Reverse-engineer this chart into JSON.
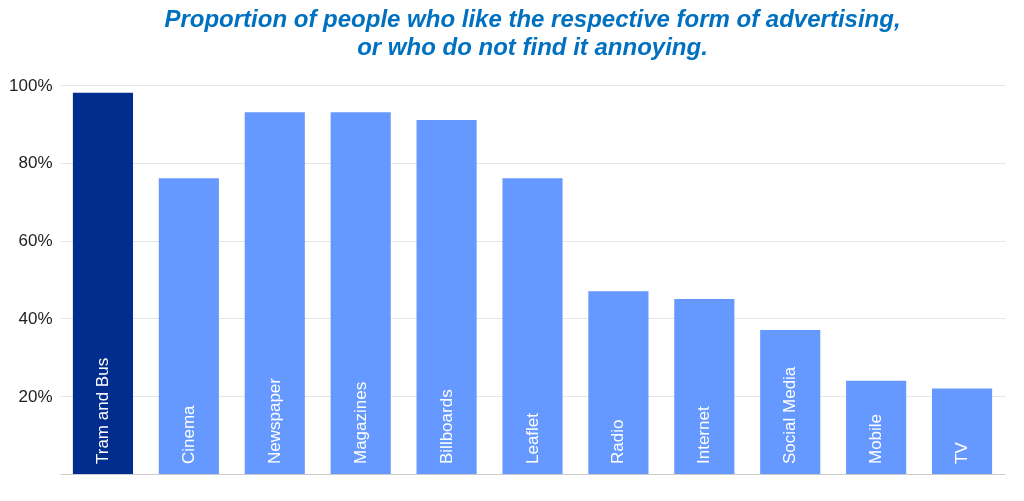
{
  "chart_data": {
    "type": "bar",
    "title": "Proportion of people who like the respective form of advertising,\nor who do not find it annoying.",
    "categories": [
      "Tram and Bus",
      "Cinema",
      "Newspaper",
      "Magazines",
      "Billboards",
      "Leaflet",
      "Radio",
      "Internet",
      "Social Media",
      "Mobile",
      "TV"
    ],
    "values": [
      98,
      76,
      93,
      93,
      91,
      76,
      47,
      45,
      37,
      24,
      22
    ],
    "colors": [
      "#002d8e",
      "#6699ff",
      "#6699ff",
      "#6699ff",
      "#6699ff",
      "#6699ff",
      "#6699ff",
      "#6699ff",
      "#6699ff",
      "#6699ff",
      "#6699ff"
    ],
    "ylim": [
      0,
      100
    ],
    "yticks": [
      {
        "value": 20,
        "label": "20%"
      },
      {
        "value": 40,
        "label": "40%"
      },
      {
        "value": 60,
        "label": "60%"
      },
      {
        "value": 80,
        "label": "80%"
      },
      {
        "value": 100,
        "label": "100%"
      }
    ],
    "grid": "y"
  }
}
